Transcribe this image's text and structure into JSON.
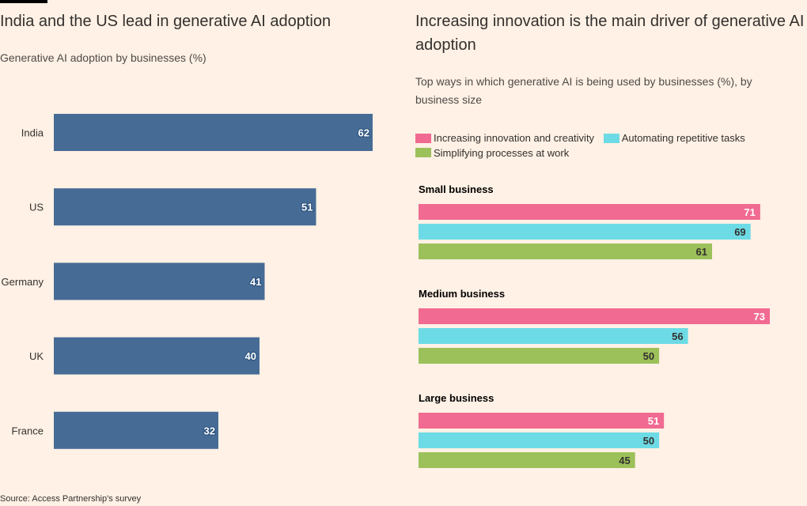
{
  "colors": {
    "background": "#fff1e5",
    "left_bar": "#466c96",
    "innovation": "#f06a91",
    "automating": "#6ddbe5",
    "simplifying": "#9cc05a"
  },
  "left": {
    "title": "India and the US lead in generative AI adoption",
    "subtitle": "Generative AI adoption by businesses (%)"
  },
  "right": {
    "title": "Increasing innovation is the main driver of generative AI adoption",
    "subtitle": "Top ways in which generative AI is being used by businesses (%), by business size"
  },
  "source": "Source: Access Partnership's survey",
  "chart_data": [
    {
      "type": "bar",
      "orientation": "horizontal",
      "title": "India and the US lead in generative AI adoption",
      "subtitle": "Generative AI adoption by businesses (%)",
      "categories": [
        "India",
        "US",
        "Germany",
        "UK",
        "France"
      ],
      "values": [
        62,
        51,
        41,
        40,
        32
      ],
      "xlim": [
        0,
        62
      ],
      "grid": false
    },
    {
      "type": "bar",
      "orientation": "horizontal",
      "title": "Increasing innovation is the main driver of generative AI adoption",
      "subtitle": "Top ways in which generative AI is being used by businesses (%), by business size",
      "categories": [
        "Small business",
        "Medium business",
        "Large business"
      ],
      "series": [
        {
          "name": "Increasing innovation and creativity",
          "values": [
            71,
            73,
            51
          ]
        },
        {
          "name": "Automating repetitive tasks",
          "values": [
            69,
            56,
            50
          ]
        },
        {
          "name": "Simplifying processes at work",
          "values": [
            61,
            50,
            45
          ]
        }
      ],
      "xlim": [
        0,
        73
      ],
      "legend": "top",
      "grid": false
    }
  ]
}
